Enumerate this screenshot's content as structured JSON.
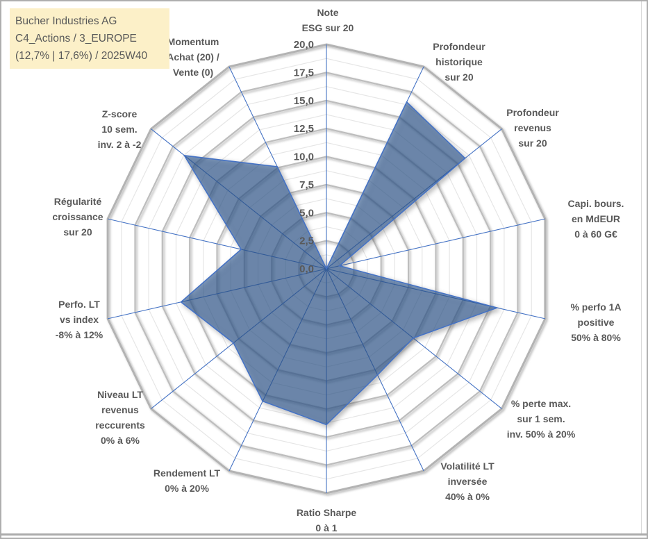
{
  "title_box": {
    "lines": [
      "Bucher Industries AG",
      "C4_Actions / 3_EUROPE",
      "(12,7% | 17,6%) / 2025W40"
    ]
  },
  "chart_data": {
    "type": "radar",
    "coordinate": "polar",
    "axes_count": 14,
    "r_axis": {
      "min": 0,
      "max": 20,
      "major_step": 2.5,
      "minor_step": 1.25,
      "tick_labels": [
        "0,0",
        "2,5",
        "5,0",
        "7,5",
        "10,0",
        "12,5",
        "15,0",
        "17,5",
        "20,0"
      ],
      "tick_values": [
        0,
        2.5,
        5,
        7.5,
        10,
        12.5,
        15,
        17.5,
        20
      ]
    },
    "categories": [
      [
        "Note",
        "ESG sur 20"
      ],
      [
        "Profondeur",
        "historique",
        "sur 20"
      ],
      [
        "Profondeur",
        "revenus",
        "sur 20"
      ],
      [
        "Capi. bours.",
        "en MdEUR",
        "0 à 60 G€"
      ],
      [
        "% perfo 1A",
        "positive",
        "50% à 80%"
      ],
      [
        "% perte max.",
        "sur 1 sem.",
        "inv. 50% à 20%"
      ],
      [
        "Volatilité LT",
        "inversée",
        "40% à 0%"
      ],
      [
        "Ratio Sharpe",
        "0 à 1"
      ],
      [
        "Rendement LT",
        "0% à 20%"
      ],
      [
        "Niveau LT",
        "revenus",
        "reccurents",
        "0% à 6%"
      ],
      [
        "Perfo. LT",
        "vs index",
        "-8% à 12%"
      ],
      [
        "Régularité",
        "croissance",
        "sur 20"
      ],
      [
        "Z-score",
        "10 sem.",
        "inv. 2 à -2"
      ],
      [
        "Momentum",
        "Achat (20) /",
        "Vente (0)"
      ]
    ],
    "series": [
      {
        "name": "Bucher Industries AG",
        "values": [
          0,
          16.5,
          15.8,
          1.2,
          15.6,
          9.9,
          10.5,
          13.9,
          13.1,
          10.6,
          13.3,
          7.8,
          16.2,
          10.1
        ]
      }
    ],
    "legend": "none",
    "grid": true
  },
  "colors": {
    "grid_major": "#BDBDBD",
    "grid_minor": "#E6E6E6",
    "spoke": "#4472C4",
    "series_stroke": "#4472C4",
    "series_fill": "rgba(45,85,140,0.60)",
    "label_text": "#595959",
    "title_bg": "#FCF0C8",
    "frame_border": "#AEAEAE"
  }
}
